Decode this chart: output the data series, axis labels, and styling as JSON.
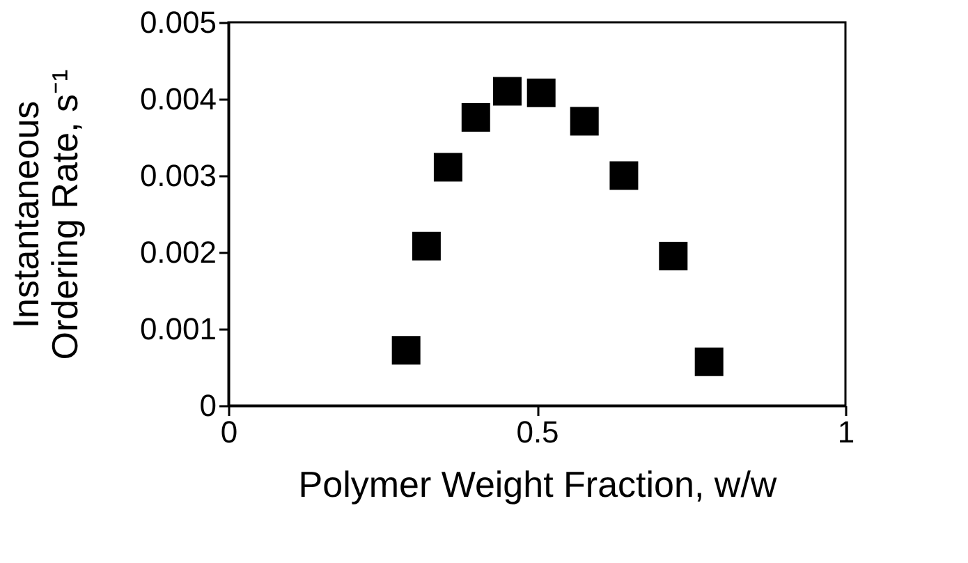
{
  "chart_data": {
    "type": "scatter",
    "xlabel": "Polymer Weight Fraction, w/w",
    "ylabel": "Instantaneous\nOrdering Rate, s⁻¹",
    "x": [
      0.288,
      0.321,
      0.356,
      0.401,
      0.452,
      0.507,
      0.577,
      0.641,
      0.721,
      0.779
    ],
    "series": [
      {
        "color": "#000000",
        "values": [
          0.00072,
          0.00208,
          0.00311,
          0.00376,
          0.0041,
          0.00408,
          0.00371,
          0.003,
          0.00195,
          0.00057
        ]
      }
    ],
    "xlim": [
      0,
      1
    ],
    "xticks": [
      0,
      0.5,
      1
    ],
    "ylim": [
      0,
      0.005
    ],
    "yticks": [
      0,
      0.001,
      0.002,
      0.003,
      0.004,
      0.005
    ],
    "marker": "square",
    "grid": false,
    "legend": false
  }
}
